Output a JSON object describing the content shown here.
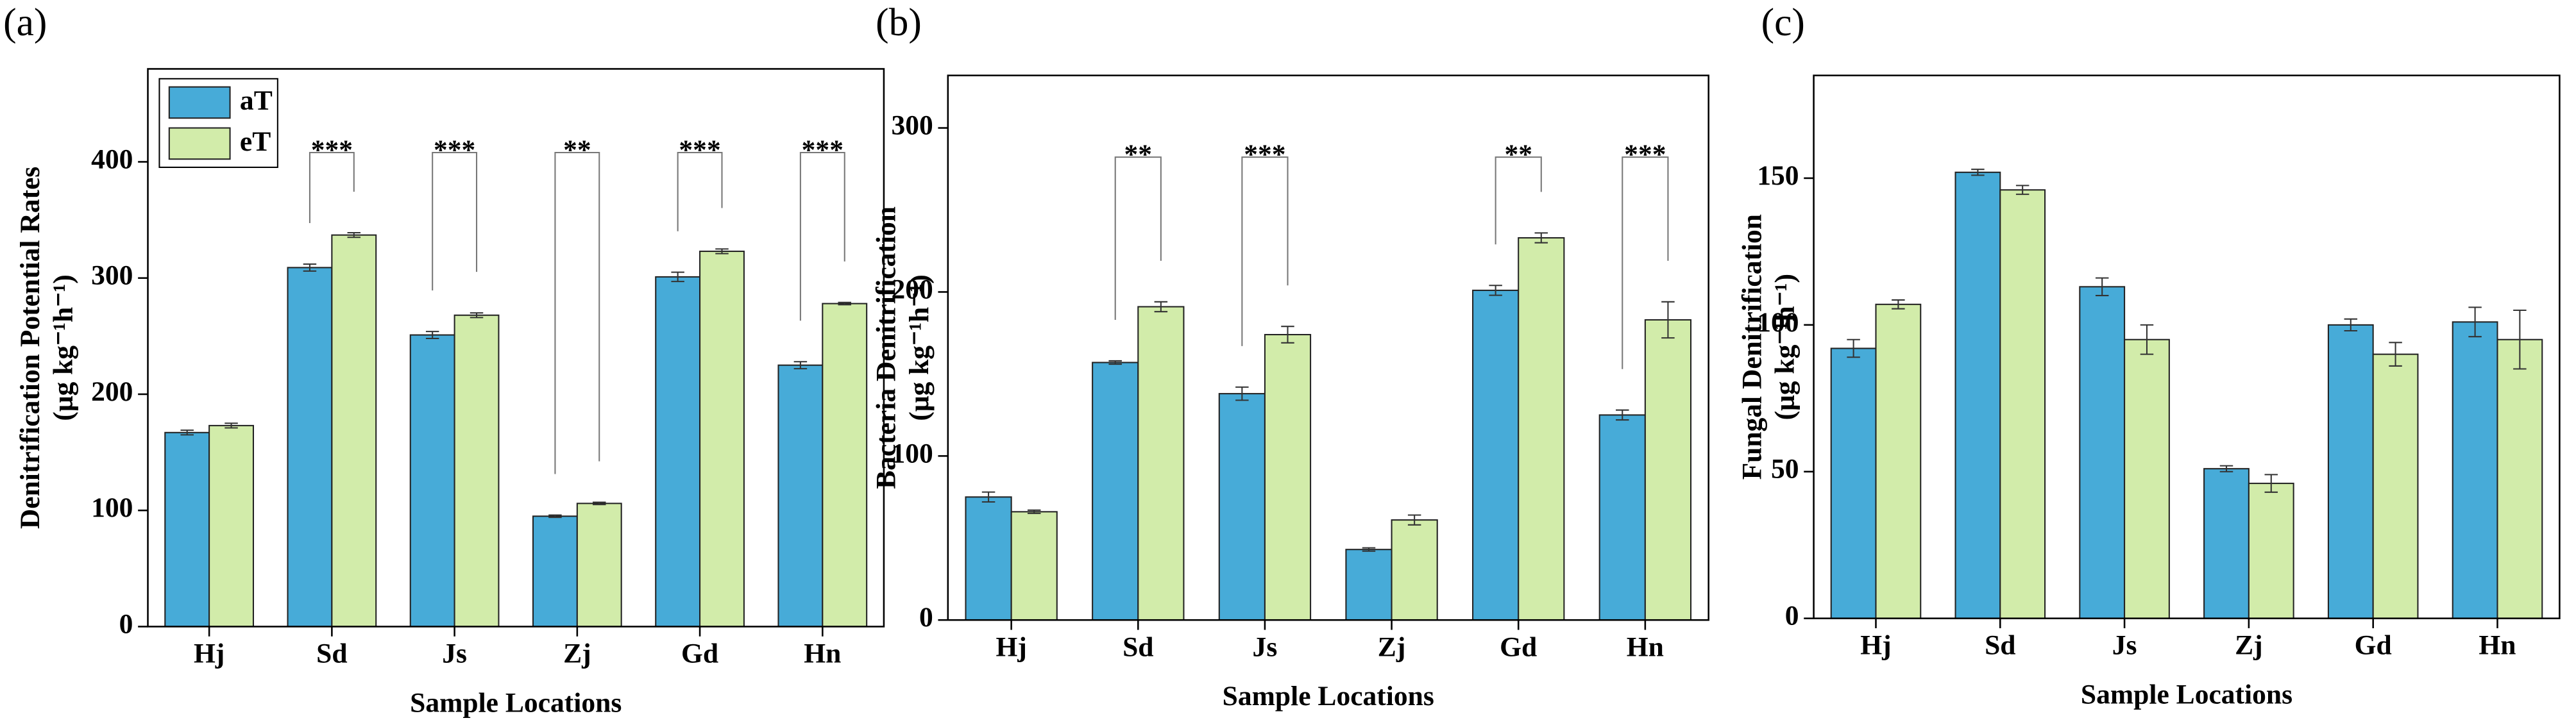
{
  "chart_data": [
    {
      "type": "bar",
      "panel_label": "(a)",
      "ylabel": [
        "Denitrification Potential Rates",
        "(μg kg⁻¹h⁻¹)"
      ],
      "xlabel": "Sample Locations",
      "categories": [
        "Hj",
        "Sd",
        "Js",
        "Zj",
        "Gd",
        "Hn"
      ],
      "series": [
        {
          "name": "aT",
          "color": "#47abd8",
          "values": [
            167,
            309,
            251,
            95,
            301,
            225
          ],
          "errors": [
            2,
            3,
            3,
            1,
            4,
            3
          ]
        },
        {
          "name": "eT",
          "color": "#d2ecaa",
          "values": [
            173,
            337,
            268,
            106,
            323,
            278
          ],
          "errors": [
            2,
            2,
            2,
            1,
            2,
            1
          ]
        }
      ],
      "annotations": [
        null,
        "***",
        "***",
        "**",
        "***",
        "***"
      ],
      "ylim": [
        0,
        480
      ],
      "yticks": [
        0,
        100,
        200,
        300,
        400
      ],
      "legend": "upper left"
    },
    {
      "type": "bar",
      "panel_label": "(b)",
      "ylabel": [
        "Bacteria Denitrification",
        "(μg kg⁻¹h⁻¹)"
      ],
      "xlabel": "Sample Locations",
      "categories": [
        "Hj",
        "Sd",
        "Js",
        "Zj",
        "Gd",
        "Hn"
      ],
      "series": [
        {
          "color": "#47abd8",
          "values": [
            75,
            157,
            138,
            43,
            201,
            125
          ],
          "errors": [
            3,
            1,
            4,
            1,
            3,
            3
          ]
        },
        {
          "color": "#d2ecaa",
          "values": [
            66,
            191,
            174,
            61,
            233,
            183
          ],
          "errors": [
            1,
            3,
            5,
            3,
            3,
            11
          ]
        }
      ],
      "annotations": [
        null,
        "**",
        "***",
        null,
        "**",
        "***"
      ],
      "ylim": [
        0,
        332
      ],
      "yticks": [
        0,
        100,
        200,
        300
      ]
    },
    {
      "type": "bar",
      "panel_label": "(c)",
      "ylabel": [
        "Fungal Denitrification",
        "(μg kg⁻¹h⁻¹)"
      ],
      "xlabel": "Sample Locations",
      "categories": [
        "Hj",
        "Sd",
        "Js",
        "Zj",
        "Gd",
        "Hn"
      ],
      "series": [
        {
          "color": "#47abd8",
          "values": [
            92,
            152,
            113,
            51,
            100,
            101
          ],
          "errors": [
            3,
            1,
            3,
            1,
            2,
            5
          ]
        },
        {
          "color": "#d2ecaa",
          "values": [
            107,
            146,
            95,
            46,
            90,
            95
          ],
          "errors": [
            1.5,
            1.5,
            5,
            3,
            4,
            10
          ]
        }
      ],
      "ylim": [
        0,
        185
      ],
      "yticks": [
        0,
        50,
        100,
        150
      ]
    }
  ]
}
